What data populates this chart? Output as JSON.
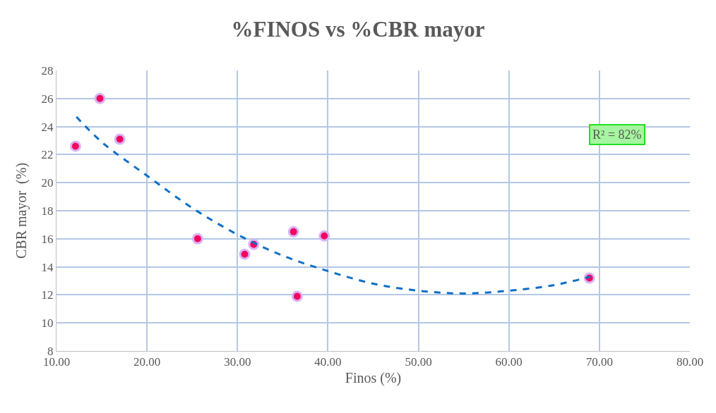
{
  "chart_data": {
    "type": "scatter",
    "title": "%FINOS vs %CBR mayor",
    "xlabel": "Finos (%)",
    "ylabel": "CBR mayor  (%)",
    "annotations": [
      "R² = 82%"
    ],
    "x": [
      12.1,
      14.8,
      17.0,
      25.6,
      30.8,
      31.8,
      36.2,
      36.6,
      39.6,
      68.9
    ],
    "series": [
      {
        "color": "#f5065e",
        "values": [
          22.6,
          26.0,
          23.1,
          16.0,
          14.9,
          15.6,
          16.5,
          11.9,
          16.2,
          13.2
        ],
        "marker": "circle"
      },
      {
        "type": "line",
        "color": "#0f6fc6",
        "line_style": "dashed",
        "marker": "none",
        "x": [
          12.2,
          15,
          20,
          25,
          30,
          35,
          40,
          45,
          50,
          55,
          60,
          65,
          69
        ],
        "values": [
          24.7,
          22.9,
          20.5,
          18.2,
          16.3,
          14.8,
          13.7,
          12.8,
          12.3,
          12.1,
          12.3,
          12.7,
          13.3
        ]
      }
    ],
    "xlim": [
      10,
      80
    ],
    "xticks": [
      {
        "value": 10,
        "label": "10.00"
      },
      {
        "value": 20,
        "label": "20.00"
      },
      {
        "value": 30,
        "label": "30.00"
      },
      {
        "value": 40,
        "label": "40.00"
      },
      {
        "value": 50,
        "label": "50.00"
      },
      {
        "value": 60,
        "label": "60.00"
      },
      {
        "value": 70,
        "label": "70.00"
      },
      {
        "value": 80,
        "label": "80.00"
      }
    ],
    "ylim": [
      8,
      28
    ],
    "yticks": [
      8,
      10,
      12,
      14,
      16,
      18,
      20,
      22,
      24,
      26,
      28
    ],
    "grid": true
  }
}
